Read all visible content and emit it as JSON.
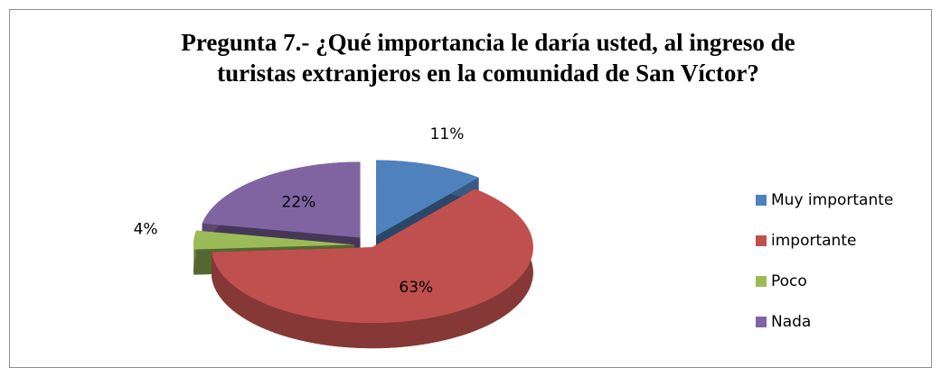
{
  "chart_data": {
    "type": "pie3d",
    "title": [
      "Pregunta 7.- ¿Qué importancia le daría usted, al ingreso de",
      "turistas extranjeros en la comunidad de San Víctor?"
    ],
    "categories": [
      "Muy importante",
      "importante",
      "Poco",
      "Nada"
    ],
    "values": [
      11,
      63,
      4,
      22
    ],
    "value_labels": [
      "11%",
      "63%",
      "4%",
      "22%"
    ],
    "colors": [
      "#4f81bd",
      "#c0504d",
      "#9bbb59",
      "#8064a2"
    ],
    "legend": "right"
  }
}
